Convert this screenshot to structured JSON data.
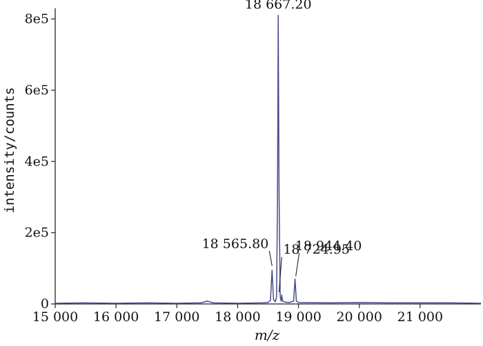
{
  "chart_data": {
    "type": "line",
    "title": "",
    "xlabel": "m/z",
    "ylabel": "intensity/counts",
    "xlim": [
      15000,
      22000
    ],
    "ylim": [
      0,
      830000
    ],
    "x_ticks": [
      15000,
      16000,
      17000,
      18000,
      19000,
      20000,
      21000
    ],
    "x_tick_labels": [
      "15 000",
      "16 000",
      "17 000",
      "18 000",
      "19 000",
      "20 000",
      "21 000"
    ],
    "y_ticks": [
      0,
      200000,
      400000,
      600000,
      800000
    ],
    "y_tick_labels": [
      "0",
      "2e5",
      "4e5",
      "6e5",
      "8e5"
    ],
    "grid": false,
    "series": [
      {
        "color": "#4a4a8c",
        "x": [
          15000,
          15500,
          16000,
          16500,
          17000,
          17400,
          17500,
          17600,
          18000,
          18400,
          18500,
          18540,
          18566,
          18590,
          18620,
          18640,
          18655,
          18667,
          18680,
          18700,
          18715,
          18725,
          18740,
          18780,
          18850,
          18920,
          18944,
          18965,
          19000,
          19500,
          20000,
          20500,
          21000,
          21500,
          22000
        ],
        "y": [
          2000,
          3000,
          2000,
          3000,
          2000,
          3000,
          8000,
          3000,
          2000,
          3000,
          4000,
          10000,
          95000,
          12000,
          6000,
          20000,
          300000,
          810000,
          320000,
          20000,
          8000,
          25000,
          8000,
          5000,
          4000,
          8000,
          70000,
          8000,
          4000,
          3000,
          4000,
          3000,
          3000,
          3000,
          2000
        ]
      }
    ],
    "annotations": [
      {
        "text": "18 667.20",
        "x": 18667.2,
        "y": 810000,
        "leader": false
      },
      {
        "text": "18 565.80",
        "x": 18565.8,
        "y": 95000,
        "leader": true
      },
      {
        "text": "18 724.95",
        "x": 18724.95,
        "y": 25000,
        "leader": true
      },
      {
        "text": "18 944.40",
        "x": 18944.4,
        "y": 70000,
        "leader": true
      }
    ]
  }
}
